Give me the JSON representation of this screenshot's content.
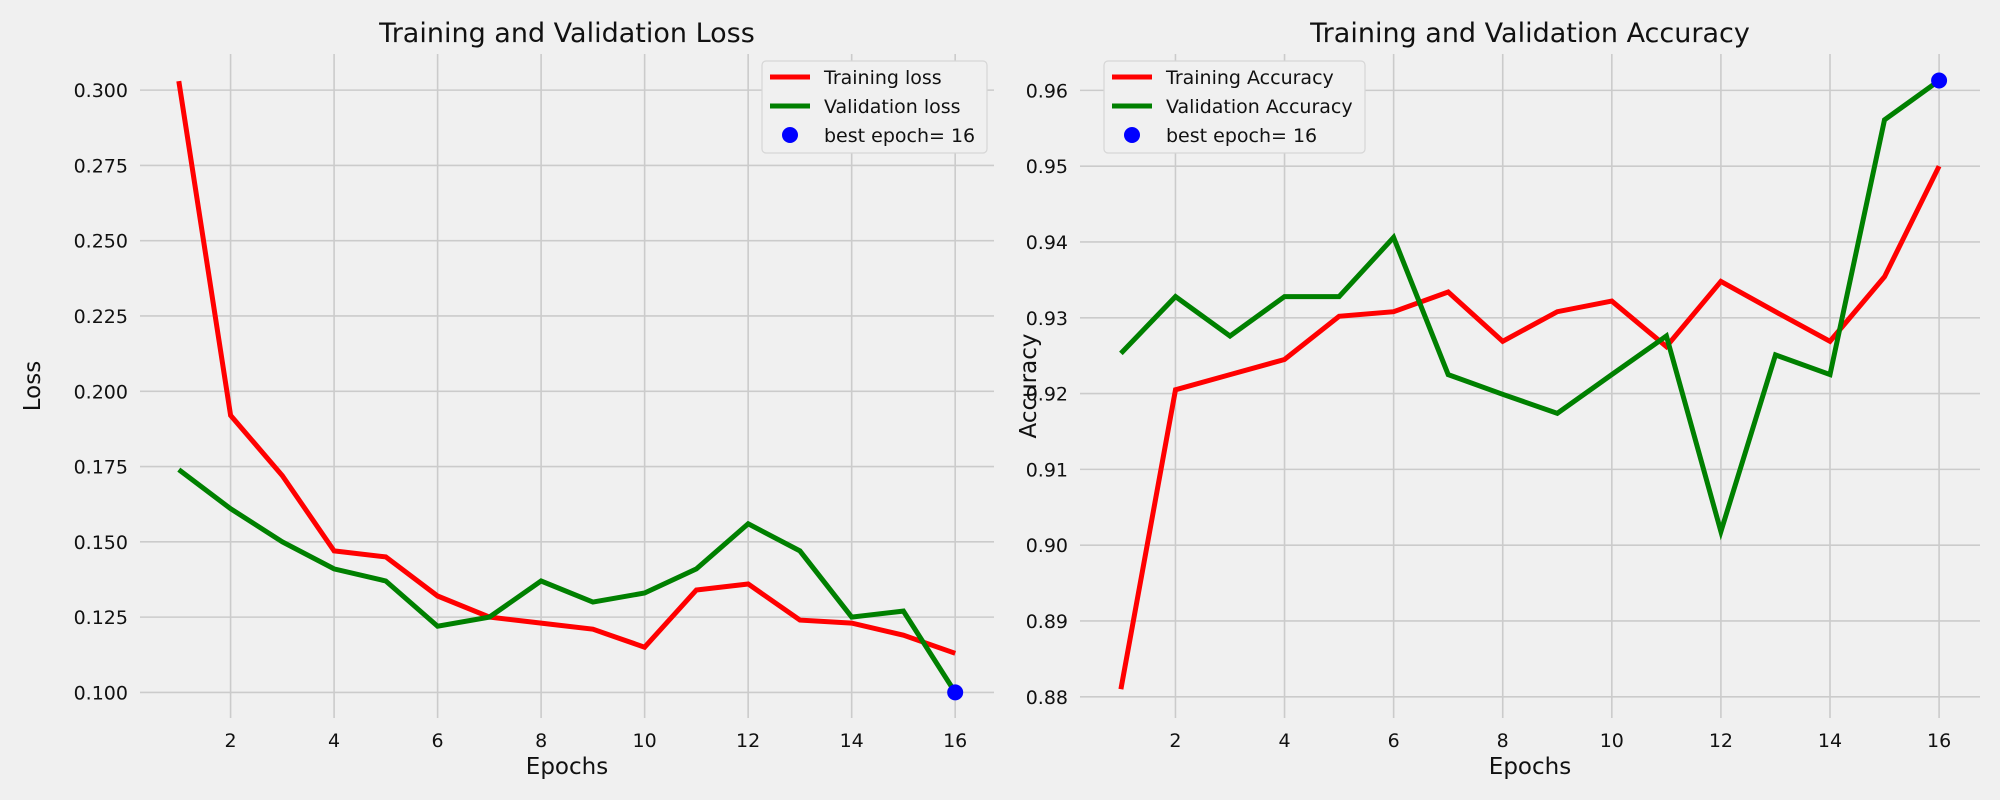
{
  "chart_data": [
    {
      "type": "line",
      "title": "Training and Validation Loss",
      "xlabel": "Epochs",
      "ylabel": "Loss",
      "x": [
        1,
        2,
        3,
        4,
        5,
        6,
        7,
        8,
        9,
        10,
        11,
        12,
        13,
        14,
        15,
        16
      ],
      "xlim": [
        0.25,
        16.75
      ],
      "ylim": [
        0.0915,
        0.312
      ],
      "xticks": [
        2,
        4,
        6,
        8,
        10,
        12,
        14,
        16
      ],
      "yticks": [
        0.1,
        0.125,
        0.15,
        0.175,
        0.2,
        0.225,
        0.25,
        0.275,
        0.3
      ],
      "ytick_labels": [
        "0.100",
        "0.125",
        "0.150",
        "0.175",
        "0.200",
        "0.225",
        "0.250",
        "0.275",
        "0.300"
      ],
      "grid": true,
      "legend_position": "upper right",
      "series": [
        {
          "name": "Training loss",
          "color": "#ff0000",
          "values": [
            0.303,
            0.192,
            0.172,
            0.147,
            0.145,
            0.132,
            0.125,
            0.123,
            0.121,
            0.115,
            0.134,
            0.136,
            0.124,
            0.123,
            0.119,
            0.113
          ]
        },
        {
          "name": "Validation loss",
          "color": "#008000",
          "values": [
            0.174,
            0.161,
            0.15,
            0.141,
            0.137,
            0.122,
            0.125,
            0.137,
            0.13,
            0.133,
            0.141,
            0.156,
            0.147,
            0.125,
            0.127,
            0.1
          ]
        }
      ],
      "best_point": {
        "name": "best epoch= 16",
        "color": "#0000ff",
        "x": 16,
        "y": 0.1
      }
    },
    {
      "type": "line",
      "title": "Training and Validation Accuracy",
      "xlabel": "Epochs",
      "ylabel": "Accuracy",
      "x": [
        1,
        2,
        3,
        4,
        5,
        6,
        7,
        8,
        9,
        10,
        11,
        12,
        13,
        14,
        15,
        16
      ],
      "xlim": [
        0.25,
        16.75
      ],
      "ylim": [
        0.8772,
        0.9648
      ],
      "xticks": [
        2,
        4,
        6,
        8,
        10,
        12,
        14,
        16
      ],
      "yticks": [
        0.88,
        0.89,
        0.9,
        0.91,
        0.92,
        0.93,
        0.94,
        0.95,
        0.96
      ],
      "ytick_labels": [
        "0.88",
        "0.89",
        "0.90",
        "0.91",
        "0.92",
        "0.93",
        "0.94",
        "0.95",
        "0.96"
      ],
      "grid": true,
      "legend_position": "upper left",
      "series": [
        {
          "name": "Training Accuracy",
          "color": "#ff0000",
          "values": [
            0.881,
            0.9205,
            0.9225,
            0.9245,
            0.9302,
            0.9308,
            0.9334,
            0.9269,
            0.9308,
            0.9322,
            0.9262,
            0.9348,
            0.9308,
            0.9269,
            0.9354,
            0.95
          ]
        },
        {
          "name": "Validation Accuracy",
          "color": "#008000",
          "values": [
            0.9253,
            0.9328,
            0.9276,
            0.9328,
            0.9328,
            0.9406,
            0.9225,
            0.9199,
            0.9174,
            0.9225,
            0.9276,
            0.9018,
            0.9251,
            0.9225,
            0.9561,
            0.9613
          ]
        }
      ],
      "best_point": {
        "name": "best epoch= 16",
        "color": "#0000ff",
        "x": 16,
        "y": 0.9613
      }
    }
  ]
}
